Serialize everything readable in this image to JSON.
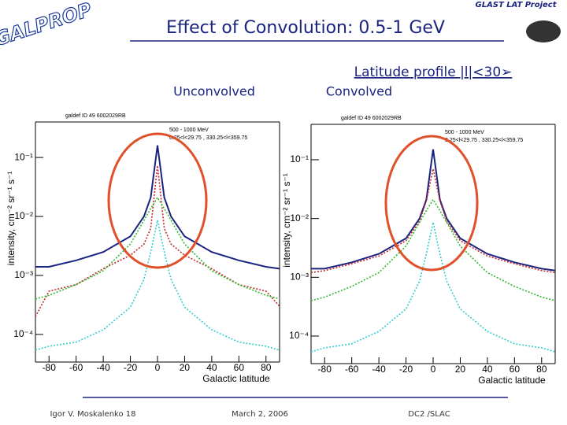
{
  "header": {
    "logo": "GALPROP",
    "title": "Effect of Convolution: 0.5-1 GeV",
    "project": "GLAST LAT Project",
    "subtitle": "Latitude profile |l|<30➢"
  },
  "footer": {
    "author": "Igor V. Moskalenko 18",
    "date": "March 2, 2006",
    "event": "DC2 /SLAC"
  },
  "chart_data": [
    {
      "type": "line",
      "title": "Unconvolved",
      "annotations": [
        "galdef ID 49 6002029RB",
        "500 - 1000 MeV",
        "0.25<l<29.75 , 330.25<l<359.75"
      ],
      "xlabel": "Galactic latitude",
      "ylabel": "intensity, cm⁻² sr⁻¹ s⁻¹",
      "x": [
        -90,
        -80,
        -60,
        -40,
        -20,
        -10,
        -5,
        0,
        5,
        10,
        20,
        40,
        60,
        80,
        90
      ],
      "xlim": [
        -90,
        90
      ],
      "xticks": [
        -80,
        -60,
        -40,
        -20,
        0,
        20,
        40,
        60,
        80
      ],
      "log_y": true,
      "ylim": [
        3.4e-05,
        0.4
      ],
      "yticks": [
        {
          "value": 0.1,
          "label": "10⁻¹"
        },
        {
          "value": 0.01,
          "label": "10⁻²"
        },
        {
          "value": 0.001,
          "label": "10⁻³"
        },
        {
          "value": 0.0001,
          "label": "10⁻⁴"
        }
      ],
      "series": [
        {
          "color": "#1a237e",
          "values": [
            0.0014,
            0.0014,
            0.0018,
            0.0025,
            0.0046,
            0.01,
            0.021,
            0.16,
            0.021,
            0.01,
            0.0046,
            0.0025,
            0.0018,
            0.0014,
            0.0013
          ]
        },
        {
          "color": "#c62828",
          "values": [
            0.0002,
            0.00054,
            0.0007,
            0.0013,
            0.0022,
            0.0034,
            0.0063,
            0.073,
            0.0063,
            0.0034,
            0.0022,
            0.0013,
            0.0007,
            0.00054,
            0.0003
          ]
        },
        {
          "color": "#2eb82e",
          "values": [
            0.0004,
            0.00046,
            0.0007,
            0.0012,
            0.0034,
            0.0086,
            0.0136,
            0.021,
            0.0136,
            0.0086,
            0.0034,
            0.0012,
            0.0007,
            0.00046,
            0.0004
          ]
        },
        {
          "color": "#33cccc",
          "values": [
            5.4e-05,
            6.3e-05,
            7.4e-05,
            0.00012,
            0.00029,
            0.00086,
            0.0025,
            0.0086,
            0.0025,
            0.00086,
            0.00029,
            0.00012,
            7.4e-05,
            6.3e-05,
            5.4e-05
          ]
        }
      ]
    },
    {
      "type": "line",
      "title": "Convolved",
      "annotations": [
        "galdef ID 49 6002029RB",
        "500 - 1000 MeV",
        "0.25<l<29.75 , 330.25<l<359.75"
      ],
      "xlabel": "Galactic latitude",
      "ylabel": "intensity, cm⁻² sr⁻¹ s⁻¹",
      "x": [
        -90,
        -80,
        -60,
        -40,
        -20,
        -10,
        -5,
        0,
        5,
        10,
        20,
        40,
        60,
        80,
        90
      ],
      "xlim": [
        -90,
        90
      ],
      "xticks": [
        -80,
        -60,
        -40,
        -20,
        0,
        20,
        40,
        60,
        80
      ],
      "log_y": true,
      "ylim": [
        3.4e-05,
        0.4
      ],
      "yticks": [
        {
          "value": 0.1,
          "label": "10⁻¹"
        },
        {
          "value": 0.01,
          "label": "10⁻²"
        },
        {
          "value": 0.001,
          "label": "10⁻³"
        },
        {
          "value": 0.0001,
          "label": "10⁻⁴"
        }
      ],
      "series": [
        {
          "color": "#1a237e",
          "values": [
            0.0014,
            0.0014,
            0.0018,
            0.0025,
            0.0046,
            0.01,
            0.021,
            0.15,
            0.021,
            0.01,
            0.0046,
            0.0025,
            0.0018,
            0.0014,
            0.0013
          ]
        },
        {
          "color": "#c62828",
          "values": [
            0.0012,
            0.0013,
            0.0017,
            0.0023,
            0.0042,
            0.009,
            0.02,
            0.07,
            0.02,
            0.009,
            0.0042,
            0.0023,
            0.0017,
            0.0013,
            0.0012
          ]
        },
        {
          "color": "#2eb82e",
          "values": [
            0.0004,
            0.00046,
            0.0007,
            0.0012,
            0.0034,
            0.0086,
            0.0136,
            0.021,
            0.0136,
            0.0086,
            0.0034,
            0.0012,
            0.0007,
            0.00046,
            0.0004
          ]
        },
        {
          "color": "#33cccc",
          "values": [
            5.4e-05,
            6.3e-05,
            7.4e-05,
            0.00012,
            0.00029,
            0.00086,
            0.0025,
            0.0086,
            0.0025,
            0.00086,
            0.00029,
            0.00012,
            7.4e-05,
            6.3e-05,
            5.4e-05
          ]
        }
      ]
    }
  ]
}
